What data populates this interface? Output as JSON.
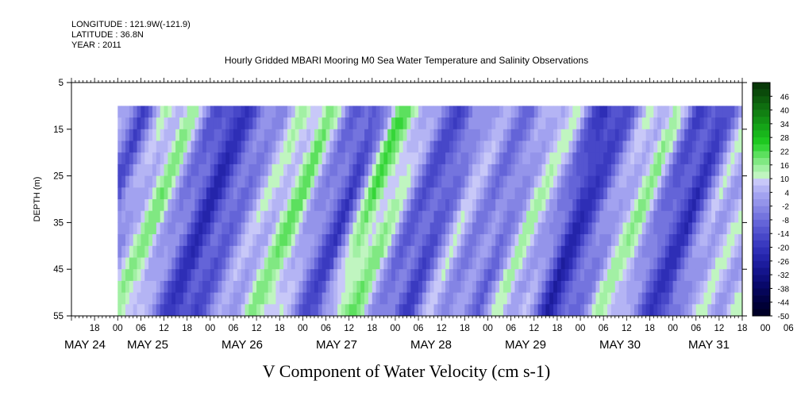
{
  "header": {
    "longitude": "LONGITUDE : 121.9W(-121.9)",
    "latitude": "LATITUDE : 36.8N",
    "year": "YEAR : 2011"
  },
  "chart_data": {
    "type": "heatmap",
    "title": "Hourly Gridded MBARI Mooring M0 Sea Water Temperature and Salinity Observations",
    "xlabel": "",
    "ylabel": "DEPTH (m)",
    "variable_label": "V Component of Water Velocity (cm s-1)",
    "ylim": [
      55,
      5
    ],
    "data_depth_range": [
      10,
      55
    ],
    "y_ticks": [
      "5",
      "15",
      "25",
      "35",
      "45",
      "55"
    ],
    "x_hour_ticks": [
      "18",
      "00",
      "06",
      "12",
      "18",
      "00",
      "06",
      "12",
      "18",
      "00",
      "06",
      "12",
      "18",
      "00",
      "06",
      "12",
      "18",
      "00",
      "06",
      "12",
      "18",
      "00",
      "06",
      "12",
      "18",
      "00",
      "06",
      "12",
      "18",
      "00",
      "06",
      "12"
    ],
    "x_date_labels": [
      "MAY 24",
      "MAY 25",
      "MAY 26",
      "MAY 27",
      "MAY 28",
      "MAY 29",
      "MAY 30",
      "MAY 31"
    ],
    "xlim": [
      "2011-05-24 12:00",
      "2011-05-31 18:00"
    ],
    "data_time_range": [
      "2011-05-25 00:00",
      "2011-05-31 18:00"
    ],
    "colorbar": {
      "labels": [
        "46",
        "40",
        "34",
        "28",
        "22",
        "16",
        "10",
        "4",
        "-2",
        "-8",
        "-14",
        "-20",
        "-26",
        "-32",
        "-38",
        "-44",
        "-50"
      ],
      "range": [
        -50,
        52
      ],
      "step": 3,
      "colors": [
        "#083808",
        "#0a4a0a",
        "#0d5c0d",
        "#0f6e10",
        "#118012",
        "#139215",
        "#15a418",
        "#18b61b",
        "#1ec820",
        "#35d538",
        "#5ce05e",
        "#80e882",
        "#a2f0a4",
        "#c0f5c0",
        "#c8c8f8",
        "#b4b4f4",
        "#a2a2f0",
        "#9494ea",
        "#8484e4",
        "#7474de",
        "#6464d8",
        "#5555d0",
        "#4747c8",
        "#3a3ac0",
        "#2e2eb6",
        "#2424aa",
        "#1c1c9c",
        "#14148c",
        "#0e0e7c",
        "#08086a",
        "#050558",
        "#020246",
        "#000036",
        "#000028"
      ]
    },
    "dominant_bands": [
      {
        "time_hours": 0,
        "value": 2
      },
      {
        "time_hours": 6,
        "value": -12
      },
      {
        "time_hours": 12,
        "value": 8
      },
      {
        "time_hours": 18,
        "value": 14
      },
      {
        "time_hours": 24,
        "value": -6
      },
      {
        "time_hours": 30,
        "value": -20
      },
      {
        "time_hours": 36,
        "value": -10
      },
      {
        "time_hours": 42,
        "value": 2
      },
      {
        "time_hours": 48,
        "value": 10
      },
      {
        "time_hours": 54,
        "value": 16
      },
      {
        "time_hours": 60,
        "value": -4
      },
      {
        "time_hours": 66,
        "value": -16
      },
      {
        "time_hours": 72,
        "value": 18
      },
      {
        "time_hours": 78,
        "value": 12
      },
      {
        "time_hours": 84,
        "value": -8
      },
      {
        "time_hours": 90,
        "value": -14
      },
      {
        "time_hours": 96,
        "value": 6
      },
      {
        "time_hours": 102,
        "value": -2
      },
      {
        "time_hours": 108,
        "value": -6
      },
      {
        "time_hours": 114,
        "value": 10
      },
      {
        "time_hours": 120,
        "value": 4
      },
      {
        "time_hours": 126,
        "value": -22
      },
      {
        "time_hours": 132,
        "value": -10
      },
      {
        "time_hours": 138,
        "value": 8
      },
      {
        "time_hours": 144,
        "value": 12
      },
      {
        "time_hours": 150,
        "value": -12
      },
      {
        "time_hours": 156,
        "value": -18
      },
      {
        "time_hours": 162,
        "value": 6
      },
      {
        "time_hours": 168,
        "value": -4
      }
    ]
  }
}
